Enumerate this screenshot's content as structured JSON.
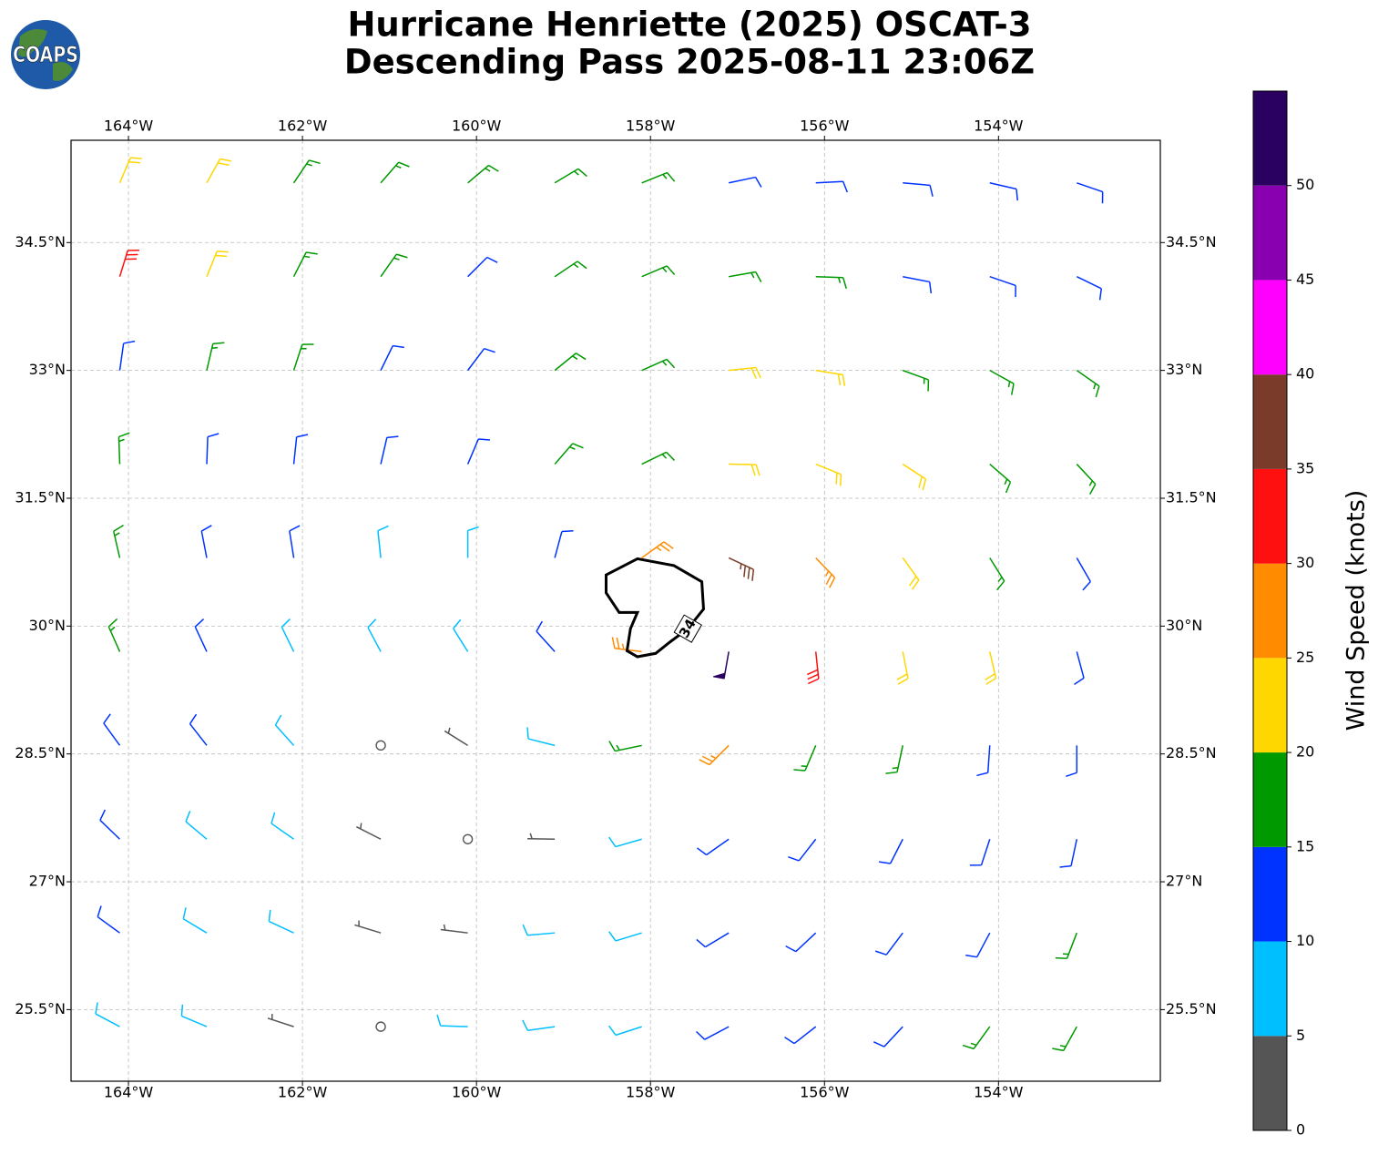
{
  "chart_data": {
    "type": "wind-barbs",
    "logo": "COAPS",
    "title": "Hurricane Henriette (2025) OSCAT-3",
    "subtitle": "Descending Pass 2025-08-11 23:06Z",
    "xlim": [
      -164.66,
      -152.14
    ],
    "ylim": [
      24.66,
      35.7
    ],
    "xticks": [
      {
        "value": -164,
        "label": "164°W"
      },
      {
        "value": -162,
        "label": "162°W"
      },
      {
        "value": -160,
        "label": "160°W"
      },
      {
        "value": -158,
        "label": "158°W"
      },
      {
        "value": -156,
        "label": "156°W"
      },
      {
        "value": -154,
        "label": "154°W"
      }
    ],
    "yticks": [
      {
        "value": 25.5,
        "label": "25.5°N"
      },
      {
        "value": 27,
        "label": "27°N"
      },
      {
        "value": 28.5,
        "label": "28.5°N"
      },
      {
        "value": 30,
        "label": "30°N"
      },
      {
        "value": 31.5,
        "label": "31.5°N"
      },
      {
        "value": 33,
        "label": "33°N"
      },
      {
        "value": 34.5,
        "label": "34.5°N"
      }
    ],
    "grid": true,
    "barbs": {
      "lon": [
        -164.1,
        -163.1,
        -162.1,
        -161.1,
        -160.1,
        -159.1,
        -158.1,
        -157.1,
        -156.1,
        -155.1,
        -154.1,
        -153.1
      ],
      "lat": [
        35.2,
        34.1,
        33.0,
        31.9,
        30.8,
        29.7,
        28.6,
        27.5,
        26.4,
        25.3
      ],
      "speed": [
        [
          20,
          22,
          17,
          17,
          17,
          15,
          15,
          12,
          12,
          12,
          12,
          12
        ],
        [
          30,
          22,
          17,
          15,
          12,
          15,
          17,
          17,
          17,
          12,
          12,
          12
        ],
        [
          12,
          17,
          15,
          12,
          12,
          17,
          17,
          22,
          22,
          17,
          17,
          17
        ],
        [
          17,
          12,
          12,
          12,
          12,
          17,
          17,
          22,
          22,
          22,
          17,
          17
        ],
        [
          17,
          12,
          12,
          8,
          8,
          12,
          27,
          37,
          27,
          22,
          17,
          12
        ],
        [
          17,
          12,
          8,
          8,
          8,
          12,
          27,
          50,
          32,
          22,
          22,
          12
        ],
        [
          12,
          12,
          8,
          2,
          3,
          8,
          17,
          27,
          17,
          17,
          12,
          12
        ],
        [
          12,
          8,
          8,
          3,
          2,
          3,
          8,
          12,
          12,
          12,
          12,
          12
        ],
        [
          12,
          8,
          8,
          3,
          3,
          8,
          8,
          12,
          12,
          12,
          12,
          17
        ],
        [
          8,
          8,
          3,
          2,
          8,
          8,
          8,
          12,
          12,
          12,
          17,
          17
        ]
      ],
      "direction": [
        [
          23,
          29,
          34,
          41,
          50,
          59,
          68,
          78,
          87,
          95,
          103,
          109
        ],
        [
          17,
          22,
          27,
          35,
          45,
          56,
          67,
          80,
          92,
          101,
          109,
          116
        ],
        [
          8,
          13,
          18,
          26,
          37,
          51,
          66,
          84,
          99,
          110,
          119,
          125
        ],
        [
          358,
          2,
          6,
          13,
          23,
          41,
          64,
          91,
          112,
          123,
          131,
          137
        ],
        [
          347,
          349,
          351,
          354,
          0,
          15,
          54,
          115,
          136,
          144,
          148,
          150
        ],
        [
          336,
          335,
          334,
          332,
          328,
          318,
          277,
          190,
          174,
          169,
          167,
          165
        ],
        [
          324,
          322,
          318,
          312,
          302,
          284,
          258,
          225,
          203,
          192,
          184,
          180
        ],
        [
          314,
          310,
          305,
          297,
          286,
          271,
          254,
          235,
          218,
          207,
          198,
          192
        ],
        [
          306,
          301,
          295,
          287,
          277,
          265,
          253,
          239,
          227,
          217,
          208,
          201
        ],
        [
          298,
          293,
          288,
          280,
          272,
          262,
          252,
          242,
          232,
          223,
          216,
          209
        ]
      ]
    },
    "contour": {
      "level": 34,
      "lon": [
        -158.51,
        -158.15,
        -157.73,
        -157.41,
        -157.39,
        -157.57,
        -157.78,
        -157.94,
        -158.15,
        -158.27,
        -158.23,
        -158.15,
        -158.36,
        -158.51
      ],
      "lat": [
        30.6,
        30.79,
        30.71,
        30.52,
        30.2,
        29.97,
        29.81,
        29.68,
        29.64,
        29.71,
        29.97,
        30.16,
        30.16,
        30.39
      ]
    },
    "colorbar": {
      "label": "Wind Speed (knots)",
      "bounds": [
        0,
        5,
        10,
        15,
        20,
        25,
        30,
        35,
        40,
        45,
        50,
        55
      ],
      "colors": [
        "#555555",
        "#00bfff",
        "#0033ff",
        "#009900",
        "#ffd700",
        "#ff8c00",
        "#ff1010",
        "#7b3b2a",
        "#ff00ff",
        "#8800b0",
        "#2a0060"
      ],
      "ticks": [
        0,
        5,
        10,
        15,
        20,
        25,
        30,
        35,
        40,
        45,
        50
      ]
    }
  }
}
